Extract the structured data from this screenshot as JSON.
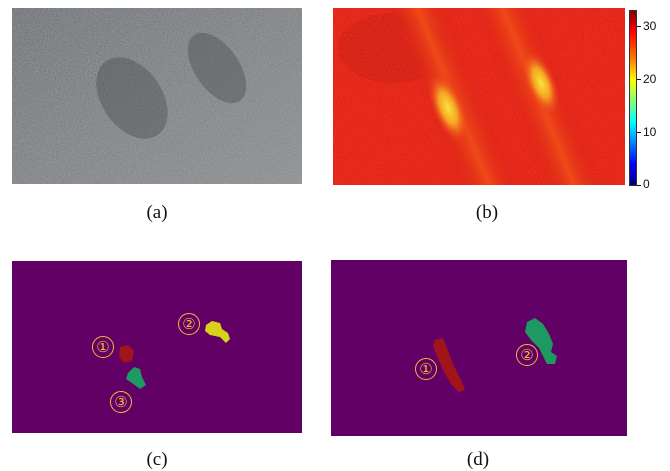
{
  "panels": {
    "a": {
      "label": "(a)"
    },
    "b": {
      "label": "(b)"
    },
    "c": {
      "label": "(c)",
      "markers": [
        "①",
        "②",
        "③"
      ]
    },
    "d": {
      "label": "(d)",
      "markers": [
        "①",
        "②"
      ]
    }
  },
  "colorbar": {
    "ticks": [
      "30",
      "20",
      "10",
      "0"
    ],
    "min": 0,
    "max": 30
  },
  "colors": {
    "segmentation_background": "#630065",
    "region_red": "#a0141a",
    "region_yellow": "#d8d21a",
    "region_green": "#1c9a62",
    "marker": "#f2b93b"
  }
}
